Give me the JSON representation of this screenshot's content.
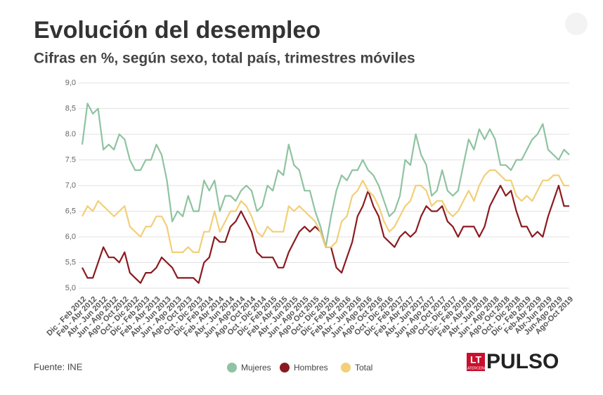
{
  "chart_data": {
    "type": "line",
    "title": "Evolución del desempleo",
    "subtitle": "Cifras en %, según sexo, total país, trimestres móviles",
    "source": "Fuente: INE",
    "logo": {
      "mark": "LT",
      "name": "PULSO",
      "sub": "LATERCERA"
    },
    "categories": [
      "Dic - Feb 2012",
      null,
      "Feb - Abr 2012",
      null,
      "Abr - Jun 2012",
      null,
      "Jun - Ago 2012",
      null,
      "Ago - Oct 2012",
      null,
      "Oct - Dic 2012",
      null,
      "Dic - Feb 2013",
      null,
      "Feb - Abr 2013",
      null,
      "Abr - Jun 2013",
      null,
      "Jun - Ago 2013",
      null,
      "Ago - Oct 2013",
      null,
      "Oct - Dic 2013",
      null,
      "Dic - Feb 2014",
      null,
      "Feb - Abr 2014",
      null,
      "Abr - Jun 2014",
      null,
      "Jun - Ago 2014",
      null,
      "Ago - Oct 2014",
      null,
      "Oct - Dic 2014",
      null,
      "Dic - Feb 2015",
      null,
      "Feb - Abr 2015",
      null,
      "Abr - Jun 2015",
      null,
      "Jun - Ago 2015",
      null,
      "Ago - Oct 2015",
      null,
      "Oct - Dic 2015",
      null,
      "Dic - Feb 2016",
      null,
      "Feb - Abr 2016",
      null,
      "Abr - Jun 2016",
      null,
      "Jun - Ago 2016",
      null,
      "Ago - Oct 2016",
      null,
      "Oct - Dic 2016",
      null,
      "Dic - Feb 2017",
      null,
      "Feb - Abr 2017",
      null,
      "Abr - Jun 2017",
      null,
      "Jun - Ago 2017",
      null,
      "Ago - Oct 2017",
      null,
      "Oct - Dic 2017",
      null,
      "Dic - Feb 2018",
      null,
      "Feb - Abr 2018",
      null,
      "Abr - Jun 2018",
      null,
      "Jun - Ago 2018",
      null,
      "Ago - Oct 2018",
      null,
      "Oct - Dic 2018",
      null,
      "Dic - Feb 2019",
      null,
      "Feb-Abr 2019",
      null,
      "Abr-Jun 2019",
      null,
      "Jun-Ago 2019",
      null,
      "Ago-Oct 2019"
    ],
    "series": [
      {
        "name": "Mujeres",
        "color": "#8fc3a1",
        "values": [
          7.8,
          8.6,
          8.4,
          8.5,
          7.7,
          7.8,
          7.7,
          8.0,
          7.9,
          7.5,
          7.3,
          7.3,
          7.5,
          7.5,
          7.8,
          7.6,
          7.1,
          6.3,
          6.5,
          6.4,
          6.8,
          6.5,
          6.5,
          7.1,
          6.9,
          7.1,
          6.5,
          6.8,
          6.8,
          6.7,
          6.9,
          7.0,
          6.9,
          6.5,
          6.6,
          7.0,
          6.9,
          7.3,
          7.2,
          7.8,
          7.4,
          7.3,
          6.9,
          6.9,
          6.5,
          6.2,
          5.8,
          6.4,
          6.9,
          7.2,
          7.1,
          7.3,
          7.3,
          7.5,
          7.3,
          7.2,
          7.0,
          6.7,
          6.4,
          6.5,
          6.8,
          7.5,
          7.4,
          8.0,
          7.6,
          7.4,
          6.8,
          6.9,
          7.3,
          6.9,
          6.8,
          6.9,
          7.4,
          7.9,
          7.7,
          8.1,
          7.9,
          8.1,
          7.9,
          7.4,
          7.4,
          7.3,
          7.5,
          7.5,
          7.7,
          7.9,
          8.0,
          8.2,
          7.7,
          7.6,
          7.5,
          7.7,
          7.6
        ]
      },
      {
        "name": "Hombres",
        "color": "#8b1a1f",
        "values": [
          5.4,
          5.2,
          5.2,
          5.5,
          5.8,
          5.6,
          5.6,
          5.5,
          5.7,
          5.3,
          5.2,
          5.1,
          5.3,
          5.3,
          5.4,
          5.6,
          5.5,
          5.4,
          5.2,
          5.2,
          5.2,
          5.2,
          5.1,
          5.5,
          5.6,
          6.0,
          5.9,
          5.9,
          6.2,
          6.3,
          6.5,
          6.3,
          6.1,
          5.7,
          5.6,
          5.6,
          5.6,
          5.4,
          5.4,
          5.7,
          5.9,
          6.1,
          6.2,
          6.1,
          6.2,
          6.1,
          5.8,
          5.8,
          5.4,
          5.3,
          5.6,
          5.9,
          6.4,
          6.6,
          6.9,
          6.6,
          6.4,
          6.0,
          5.9,
          5.8,
          6.0,
          6.1,
          6.0,
          6.1,
          6.4,
          6.6,
          6.5,
          6.5,
          6.6,
          6.3,
          6.2,
          6.0,
          6.2,
          6.2,
          6.2,
          6.0,
          6.2,
          6.6,
          6.8,
          7.0,
          6.8,
          6.9,
          6.5,
          6.2,
          6.2,
          6.0,
          6.1,
          6.0,
          6.4,
          6.7,
          7.0,
          6.6,
          6.6
        ]
      },
      {
        "name": "Total",
        "color": "#f2cf78",
        "values": [
          6.4,
          6.6,
          6.5,
          6.7,
          6.6,
          6.5,
          6.4,
          6.5,
          6.6,
          6.2,
          6.1,
          6.0,
          6.2,
          6.2,
          6.4,
          6.4,
          6.2,
          5.7,
          5.7,
          5.7,
          5.8,
          5.7,
          5.7,
          6.1,
          6.1,
          6.5,
          6.1,
          6.3,
          6.5,
          6.5,
          6.7,
          6.6,
          6.4,
          6.1,
          6.0,
          6.2,
          6.1,
          6.1,
          6.1,
          6.6,
          6.5,
          6.6,
          6.5,
          6.4,
          6.3,
          6.1,
          5.8,
          5.8,
          5.9,
          6.3,
          6.4,
          6.8,
          6.9,
          7.1,
          6.9,
          6.8,
          6.6,
          6.3,
          6.1,
          6.2,
          6.4,
          6.6,
          6.7,
          7.0,
          7.0,
          6.9,
          6.6,
          6.7,
          6.7,
          6.5,
          6.4,
          6.5,
          6.7,
          6.9,
          6.7,
          7.0,
          7.2,
          7.3,
          7.3,
          7.2,
          7.1,
          7.1,
          6.8,
          6.7,
          6.8,
          6.7,
          6.9,
          7.1,
          7.1,
          7.2,
          7.2,
          7.0,
          7.0
        ]
      }
    ],
    "ylim": [
      5,
      9
    ],
    "yticks": [
      {
        "value": 5,
        "label": "5,0"
      },
      {
        "value": 5.5,
        "label": "5,5"
      },
      {
        "value": 6,
        "label": "6,0"
      },
      {
        "value": 6.5,
        "label": "6,5"
      },
      {
        "value": 7,
        "label": "7,0"
      },
      {
        "value": 7.5,
        "label": "7.5"
      },
      {
        "value": 8,
        "label": "8.0"
      },
      {
        "value": 8.5,
        "label": "8,5"
      },
      {
        "value": 9,
        "label": "9,0"
      }
    ],
    "grid": true,
    "legend": "bottom"
  }
}
